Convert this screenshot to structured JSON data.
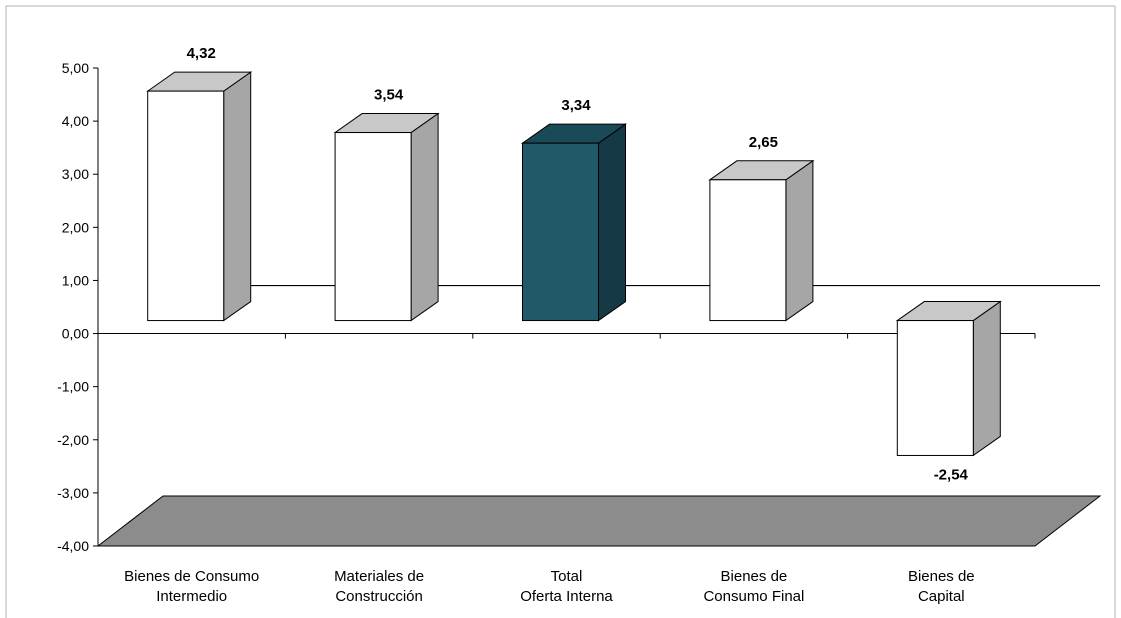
{
  "chart_data": {
    "type": "bar",
    "categories": [
      [
        "Bienes de Consumo",
        "Intermedio"
      ],
      [
        "Materiales de",
        "Construcción"
      ],
      [
        "Total",
        "Oferta Interna"
      ],
      [
        "Bienes de",
        "Consumo Final"
      ],
      [
        "Bienes de",
        "Capital"
      ]
    ],
    "values": [
      4.32,
      3.54,
      3.34,
      2.65,
      -2.54
    ],
    "value_labels": [
      "4,32",
      "3,54",
      "3,34",
      "2,65",
      "-2,54"
    ],
    "highlight_index": 2,
    "ylim": [
      -4,
      5
    ],
    "y_ticks": [
      "5,00",
      "4,00",
      "3,00",
      "2,00",
      "1,00",
      "0,00",
      "-1,00",
      "-2,00",
      "-3,00",
      "-4,00"
    ],
    "y_tick_values": [
      5,
      4,
      3,
      2,
      1,
      0,
      -1,
      -2,
      -3,
      -4
    ],
    "colors": {
      "bar_front": "#ffffff",
      "bar_side": "#a6a6a6",
      "bar_top": "#c8c8c8",
      "highlight_front": "#215968",
      "highlight_side": "#153a45",
      "highlight_top": "#1a4a57",
      "floor": "#8c8c8c",
      "axis": "#000000",
      "border": "#b0b0b0"
    },
    "grid": false,
    "legend": "none",
    "style": "3d-column"
  }
}
